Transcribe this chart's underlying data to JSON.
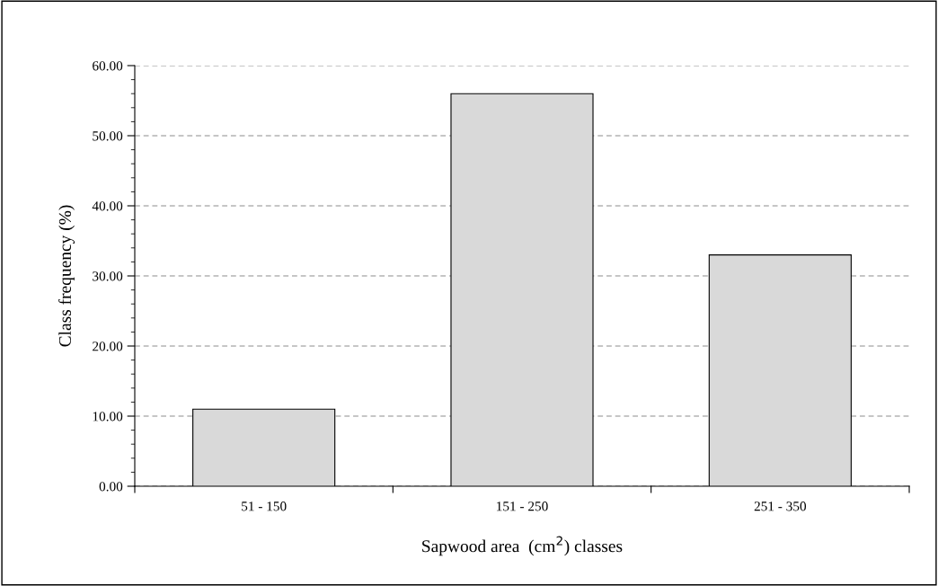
{
  "chart_data": {
    "type": "bar",
    "xlabel": "Sapwood area  (cm$^{2}$) classes",
    "ylabel": "Class frequency (%)",
    "categories": [
      "51 - 150",
      "151 - 250",
      "251 - 350"
    ],
    "values": [
      11,
      56,
      33
    ],
    "color": "#d9d9d9",
    "ylim": [
      0,
      60
    ],
    "yticks": [
      {
        "value": 0,
        "label": "0.00"
      },
      {
        "value": 10,
        "label": "10.00"
      },
      {
        "value": 20,
        "label": "20.00"
      },
      {
        "value": 30,
        "label": "30.00"
      },
      {
        "value": 40,
        "label": "40.00"
      },
      {
        "value": 50,
        "label": "50.00"
      },
      {
        "value": 60,
        "label": "60.00"
      }
    ],
    "grid": "y"
  }
}
